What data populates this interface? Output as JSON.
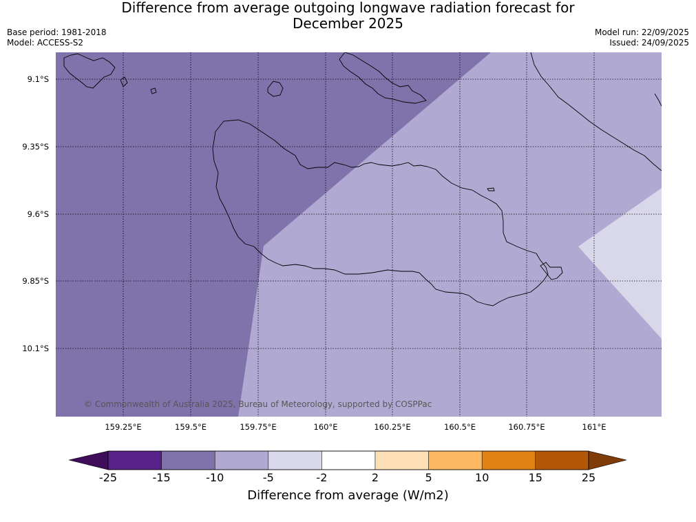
{
  "title": {
    "line1": "Difference from average outgoing longwave radiation forecast for",
    "line2": "December 2025"
  },
  "meta": {
    "base_period": "Base period: 1981-2018",
    "model": "Model: ACCESS-S2",
    "model_run": "Model run: 22/09/2025",
    "issued": "Issued: 24/09/2025"
  },
  "copyright": "© Commonwealth of Australia 2025, Bureau of Meteorology, supported by COSPPac",
  "axes": {
    "lat_labels": [
      "9.1°S",
      "9.35°S",
      "9.6°S",
      "9.85°S",
      "10.1°S"
    ],
    "lon_labels": [
      "159.25°E",
      "159.5°E",
      "159.75°E",
      "160°E",
      "160.25°E",
      "160.5°E",
      "160.75°E",
      "161°E"
    ]
  },
  "legend": {
    "title": "Difference from average (W/m2)",
    "ticks": [
      "-25",
      "-15",
      "-10",
      "-5",
      "-2",
      "2",
      "5",
      "10",
      "15",
      "25"
    ],
    "colors": [
      "#3f0d5a",
      "#56228a",
      "#8073ac",
      "#b0aad2",
      "#d9d8ea",
      "#ffffff",
      "#fee0b6",
      "#fdb863",
      "#e08214",
      "#b35806",
      "#7f3b08"
    ]
  },
  "regions": {
    "band_10_to_15": "#8073ac",
    "band_5_to_10": "#b0aad2",
    "band_2_to_5": "#d9d8ea"
  }
}
